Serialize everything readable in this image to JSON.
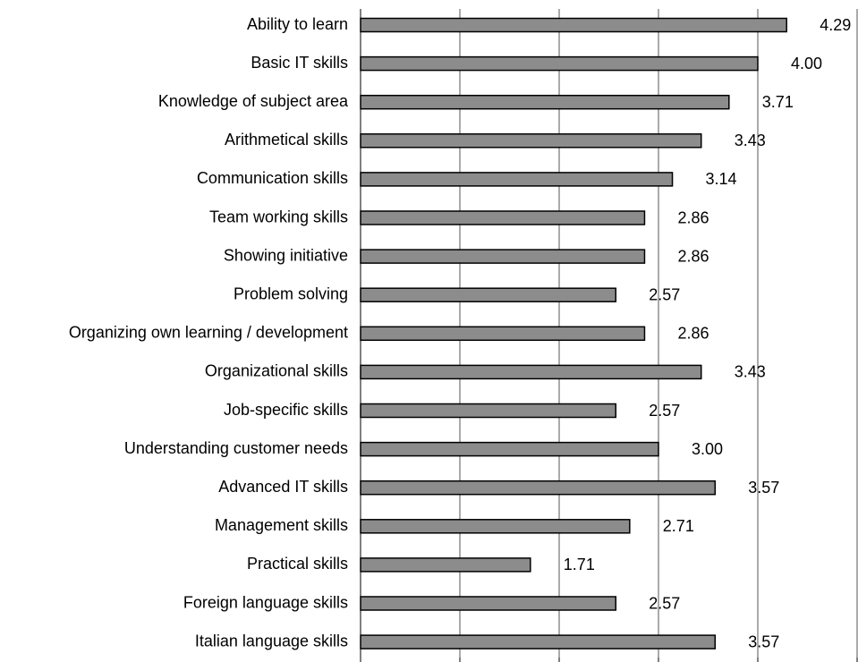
{
  "chart_data": {
    "type": "bar",
    "orientation": "horizontal",
    "categories": [
      "Ability to learn",
      "Basic IT skills",
      "Knowledge of subject area",
      "Arithmetical skills",
      "Communication skills",
      "Team working skills",
      "Showing initiative",
      "Problem solving",
      "Organizing own learning / development",
      "Organizational skills",
      "Job-specific skills",
      "Understanding customer needs",
      "Advanced IT skills",
      "Management skills",
      "Practical skills",
      "Foreign language skills",
      "Italian language skills"
    ],
    "values": [
      4.29,
      4.0,
      3.71,
      3.43,
      3.14,
      2.86,
      2.86,
      2.57,
      2.86,
      3.43,
      2.57,
      3.0,
      3.57,
      2.71,
      1.71,
      2.57,
      3.57
    ],
    "value_labels": [
      "4.29",
      "4.00",
      "3.71",
      "3.43",
      "3.14",
      "2.86",
      "2.86",
      "2.57",
      "2.86",
      "3.43",
      "2.57",
      "3.00",
      "3.57",
      "2.71",
      "1.71",
      "2.57",
      "3.57"
    ],
    "color": "#8c8c8c",
    "xlim": [
      0,
      5
    ],
    "xticks": [
      0,
      1,
      2,
      3,
      4,
      5
    ],
    "grid": true
  }
}
